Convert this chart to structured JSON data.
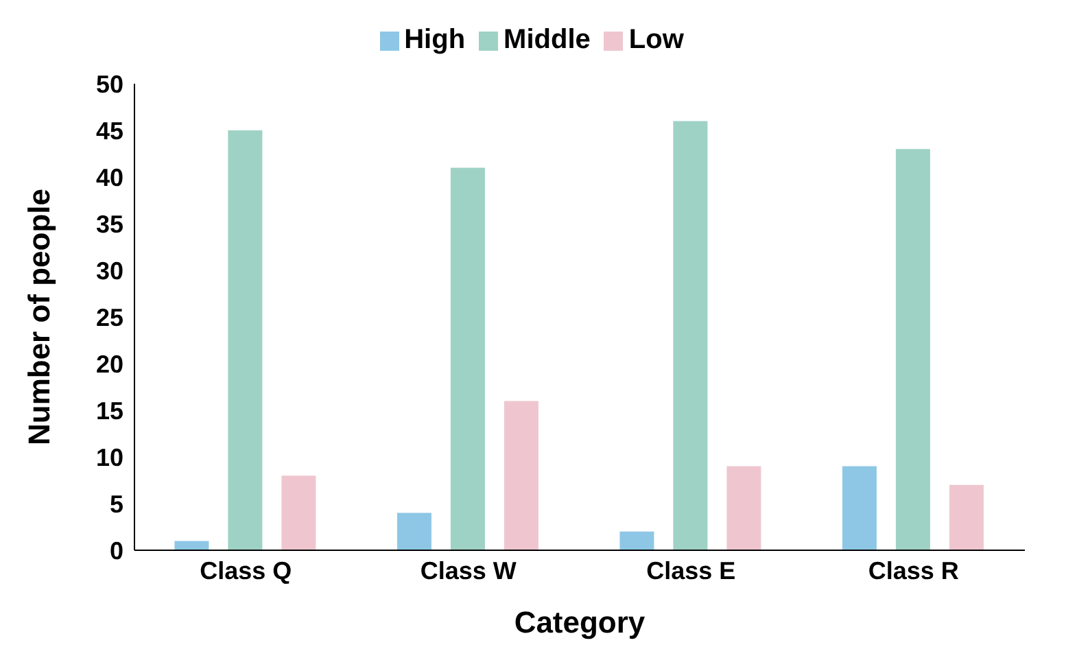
{
  "chart_data": {
    "type": "bar",
    "xlabel": "Category",
    "ylabel": "Number of people",
    "categories": [
      "Class Q",
      "Class W",
      "Class E",
      "Class R"
    ],
    "series": [
      {
        "name": "High",
        "color": "#8ec7e6",
        "values": [
          1,
          4,
          2,
          9
        ]
      },
      {
        "name": "Middle",
        "color": "#9ed2c4",
        "values": [
          45,
          41,
          46,
          43
        ]
      },
      {
        "name": "Low",
        "color": "#efc6cf",
        "values": [
          8,
          16,
          9,
          7
        ]
      }
    ],
    "ylim": [
      0,
      50
    ],
    "yticks": [
      0,
      5,
      10,
      15,
      20,
      25,
      30,
      35,
      40,
      45,
      50
    ],
    "grid": false,
    "legend": "top"
  }
}
